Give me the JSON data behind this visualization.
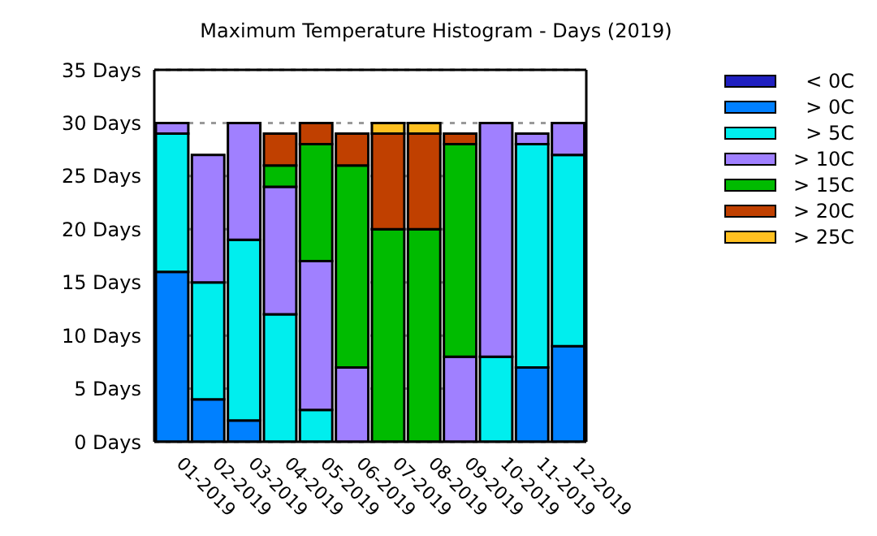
{
  "chart_data": {
    "type": "bar",
    "title": "Maximum Temperature Histogram - Days (2019)",
    "categories": [
      "01-2019",
      "02-2019",
      "03-2019",
      "04-2019",
      "05-2019",
      "06-2019",
      "07-2019",
      "08-2019",
      "09-2019",
      "10-2019",
      "11-2019",
      "12-2019"
    ],
    "stacked": true,
    "series": [
      {
        "name": "< 0C",
        "color": "#2020c0",
        "values": [
          0,
          0,
          0,
          0,
          0,
          0,
          0,
          0,
          0,
          0,
          0,
          0
        ]
      },
      {
        "name": "> 0C",
        "color": "#0080ff",
        "values": [
          16,
          4,
          2,
          0,
          0,
          0,
          0,
          0,
          0,
          0,
          7,
          9
        ]
      },
      {
        "name": "> 5C",
        "color": "#00eeee",
        "values": [
          13,
          11,
          17,
          12,
          3,
          0,
          0,
          0,
          0,
          8,
          21,
          18
        ]
      },
      {
        "name": "> 10C",
        "color": "#a080ff",
        "values": [
          1,
          12,
          11,
          12,
          14,
          7,
          0,
          0,
          8,
          22,
          1,
          3
        ]
      },
      {
        "name": "> 15C",
        "color": "#00bb00",
        "values": [
          0,
          0,
          0,
          2,
          11,
          19,
          20,
          20,
          20,
          0,
          0,
          0
        ]
      },
      {
        "name": "> 20C",
        "color": "#c04000",
        "values": [
          0,
          0,
          0,
          3,
          2,
          3,
          9,
          9,
          1,
          0,
          0,
          0
        ]
      },
      {
        "name": "> 25C",
        "color": "#ffc020",
        "values": [
          0,
          0,
          0,
          0,
          0,
          0,
          1,
          1,
          0,
          0,
          0,
          0
        ]
      }
    ],
    "ylim": [
      0,
      35
    ],
    "yticks": [
      {
        "value": 0,
        "label": "0 Days"
      },
      {
        "value": 5,
        "label": "5 Days"
      },
      {
        "value": 10,
        "label": "10 Days"
      },
      {
        "value": 15,
        "label": "15 Days"
      },
      {
        "value": 20,
        "label": "20 Days"
      },
      {
        "value": 25,
        "label": "25 Days"
      },
      {
        "value": 30,
        "label": "30 Days"
      },
      {
        "value": 35,
        "label": "35 Days"
      }
    ],
    "grid": "y",
    "legend": "right"
  }
}
